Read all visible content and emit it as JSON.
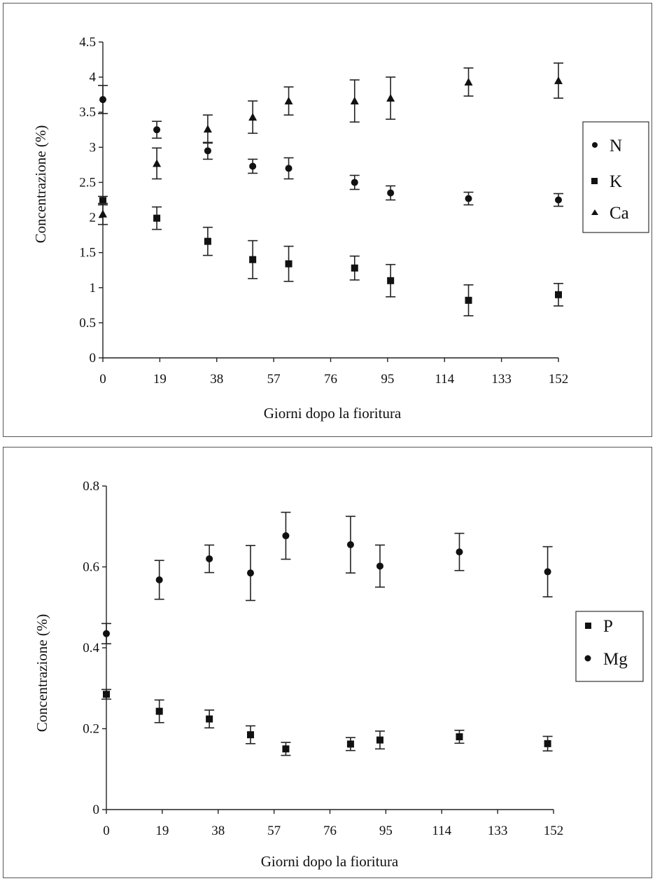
{
  "chart_data": [
    {
      "type": "scatter",
      "xlabel": "Giorni dopo la fioritura",
      "ylabel": "Concentrazione (%)",
      "xlim": [
        0,
        152
      ],
      "ylim": [
        0,
        4.5
      ],
      "x_ticks": [
        "0",
        "19",
        "38",
        "57",
        "76",
        "95",
        "114",
        "133",
        "152"
      ],
      "y_ticks": [
        "0",
        "0.5",
        "1",
        "1.5",
        "2",
        "2.5",
        "3",
        "3.5",
        "4",
        "4.5"
      ],
      "error_bars": true,
      "legend_position": "right",
      "series": [
        {
          "name": "N",
          "marker": "circle",
          "x": [
            0,
            18,
            35,
            50,
            62,
            84,
            96,
            122,
            152
          ],
          "y": [
            3.68,
            3.25,
            2.95,
            2.73,
            2.7,
            2.5,
            2.35,
            2.27,
            2.25
          ],
          "err": [
            0.2,
            0.12,
            0.12,
            0.1,
            0.15,
            0.1,
            0.1,
            0.09,
            0.09
          ]
        },
        {
          "name": "K",
          "marker": "square",
          "x": [
            0,
            18,
            35,
            50,
            62,
            84,
            96,
            122,
            152
          ],
          "y": [
            2.24,
            1.99,
            1.66,
            1.4,
            1.34,
            1.28,
            1.1,
            0.82,
            0.9
          ],
          "err": [
            0.06,
            0.16,
            0.2,
            0.27,
            0.25,
            0.17,
            0.23,
            0.22,
            0.16
          ]
        },
        {
          "name": "Ca",
          "marker": "triangle",
          "x": [
            0,
            18,
            35,
            50,
            62,
            84,
            96,
            122,
            152
          ],
          "y": [
            2.05,
            2.77,
            3.26,
            3.43,
            3.66,
            3.66,
            3.7,
            3.93,
            3.95
          ],
          "err": [
            0.15,
            0.22,
            0.2,
            0.23,
            0.2,
            0.3,
            0.3,
            0.2,
            0.25
          ]
        }
      ]
    },
    {
      "type": "scatter",
      "xlabel": "Giorni dopo la fioritura",
      "ylabel": "Concentrazione (%)",
      "xlim": [
        0,
        152
      ],
      "ylim": [
        0,
        0.8
      ],
      "x_ticks": [
        "0",
        "19",
        "38",
        "57",
        "76",
        "95",
        "114",
        "133",
        "152"
      ],
      "y_ticks": [
        "0",
        "0.2",
        "0.4",
        "0.6",
        "0.8"
      ],
      "error_bars": true,
      "legend_position": "right",
      "series": [
        {
          "name": "P",
          "marker": "square",
          "x": [
            0,
            18,
            35,
            49,
            61,
            83,
            93,
            120,
            150
          ],
          "y": [
            0.285,
            0.243,
            0.224,
            0.185,
            0.15,
            0.162,
            0.172,
            0.18,
            0.163
          ],
          "err": [
            0.012,
            0.028,
            0.022,
            0.022,
            0.016,
            0.016,
            0.022,
            0.016,
            0.018
          ]
        },
        {
          "name": "Mg",
          "marker": "circle",
          "x": [
            0,
            18,
            35,
            49,
            61,
            83,
            93,
            120,
            150
          ],
          "y": [
            0.435,
            0.568,
            0.62,
            0.585,
            0.677,
            0.655,
            0.602,
            0.637,
            0.588
          ],
          "err": [
            0.025,
            0.048,
            0.034,
            0.068,
            0.058,
            0.07,
            0.052,
            0.046,
            0.062
          ]
        }
      ]
    }
  ]
}
